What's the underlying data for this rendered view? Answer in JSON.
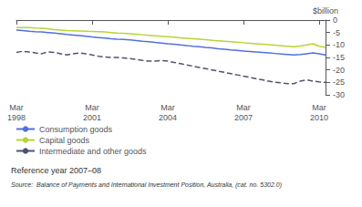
{
  "chart_data": {
    "type": "line",
    "ylabel": "$billion",
    "annotations": [
      "Reference year 2007–08",
      "Source:  Balance of Payments and International Investment Position, Australia, (cat. no. 5302.0)"
    ],
    "categories": [
      "Mar\n1998",
      null,
      null,
      null,
      null,
      null,
      null,
      null,
      null,
      null,
      null,
      null,
      "Mar\n2001",
      null,
      null,
      null,
      null,
      null,
      null,
      null,
      null,
      null,
      null,
      null,
      "Mar\n2004",
      null,
      null,
      null,
      null,
      null,
      null,
      null,
      null,
      null,
      null,
      null,
      "Mar\n2007",
      null,
      null,
      null,
      null,
      null,
      null,
      null,
      null,
      null,
      null,
      null,
      "Mar\n2010",
      null
    ],
    "ylim": [
      -30,
      0
    ],
    "yticks": [
      0,
      -5,
      -10,
      -15,
      -20,
      -25,
      -30
    ],
    "grid": false,
    "legend": "lower left",
    "series": [
      {
        "name": "Consumption goods",
        "line_style": "solid",
        "values": [
          -4.0,
          -4.2,
          -4.5,
          -4.7,
          -4.8,
          -5.0,
          -5.2,
          -5.5,
          -5.8,
          -6.0,
          -6.2,
          -6.5,
          -6.8,
          -7.0,
          -7.2,
          -7.5,
          -7.7,
          -7.8,
          -8.0,
          -8.2,
          -8.5,
          -8.7,
          -9.0,
          -9.2,
          -9.5,
          -9.7,
          -10.0,
          -10.2,
          -10.5,
          -10.7,
          -11.0,
          -11.2,
          -11.5,
          -11.7,
          -12.0,
          -12.2,
          -12.4,
          -12.6,
          -12.8,
          -13.0,
          -13.2,
          -13.4,
          -13.6,
          -13.8,
          -14.0,
          -13.8,
          -13.5,
          -13.2,
          -13.5,
          -14.0
        ]
      },
      {
        "name": "Capital goods",
        "line_style": "solid",
        "values": [
          -3.0,
          -3.0,
          -3.0,
          -3.2,
          -3.3,
          -3.5,
          -3.8,
          -4.0,
          -4.2,
          -4.3,
          -4.4,
          -4.5,
          -4.6,
          -4.7,
          -4.8,
          -5.0,
          -5.2,
          -5.3,
          -5.5,
          -5.7,
          -5.9,
          -6.1,
          -6.3,
          -6.5,
          -6.7,
          -6.9,
          -7.1,
          -7.3,
          -7.5,
          -7.7,
          -7.9,
          -8.1,
          -8.3,
          -8.5,
          -8.7,
          -8.9,
          -9.1,
          -9.3,
          -9.5,
          -9.7,
          -9.9,
          -10.1,
          -10.3,
          -10.5,
          -10.7,
          -10.4,
          -10.0,
          -9.5,
          -10.5,
          -11.0
        ]
      },
      {
        "name": "Intermediate and other goods",
        "line_style": "dashed",
        "values": [
          -13.0,
          -12.5,
          -12.8,
          -13.2,
          -13.5,
          -12.8,
          -13.0,
          -13.5,
          -14.0,
          -13.5,
          -13.2,
          -13.5,
          -14.0,
          -14.5,
          -14.8,
          -15.0,
          -15.0,
          -15.2,
          -15.5,
          -15.8,
          -16.2,
          -16.5,
          -16.5,
          -16.2,
          -16.5,
          -17.0,
          -17.5,
          -18.0,
          -18.5,
          -19.0,
          -19.5,
          -20.0,
          -20.5,
          -21.0,
          -21.5,
          -22.0,
          -22.5,
          -23.0,
          -23.5,
          -24.0,
          -24.5,
          -25.0,
          -25.2,
          -25.5,
          -25.5,
          -24.5,
          -24.0,
          -24.5,
          -24.8,
          -25.0
        ]
      }
    ]
  }
}
